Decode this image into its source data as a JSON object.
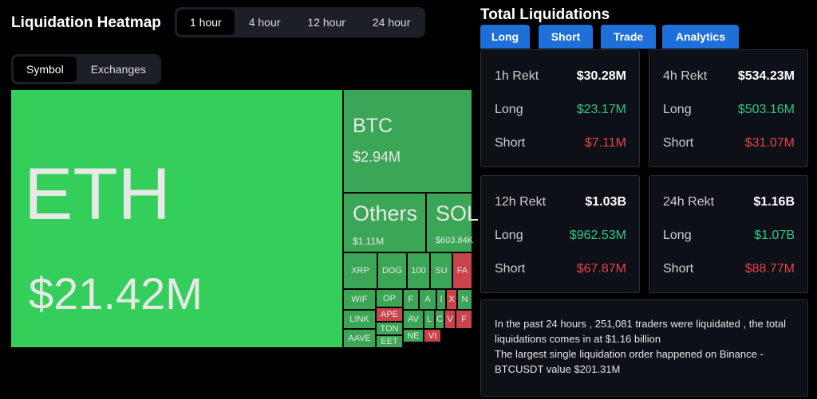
{
  "heatmap": {
    "title": "Liquidation Heatmap",
    "time_tabs": [
      "1 hour",
      "4 hour",
      "12 hour",
      "24 hour"
    ],
    "active_time_tab": 0,
    "view_tabs": [
      "Symbol",
      "Exchanges"
    ],
    "active_view_tab": 0,
    "tiles": [
      {
        "label": "ETH",
        "value": "$21.42M",
        "color": "#33cf5a"
      },
      {
        "label": "BTC",
        "value": "$2.94M",
        "color": "#3ba655"
      },
      {
        "label": "Others",
        "value": "$1.11M",
        "color": "#3ba655"
      },
      {
        "label": "SOL",
        "value": "$603.84K",
        "color": "#3ba655"
      },
      {
        "label": "XRP",
        "color": "#3ba655"
      },
      {
        "label": "DOG",
        "color": "#3ba655"
      },
      {
        "label": "100",
        "color": "#3ba655"
      },
      {
        "label": "SU",
        "color": "#3ba655"
      },
      {
        "label": "FA",
        "color": "#c9434b"
      },
      {
        "label": "WIF",
        "color": "#3ba655"
      },
      {
        "label": "LINK",
        "color": "#3ba655"
      },
      {
        "label": "AAVE",
        "color": "#3ba655"
      },
      {
        "label": "OP",
        "color": "#3ba655"
      },
      {
        "label": "APE",
        "color": "#c9434b"
      },
      {
        "label": "TON",
        "color": "#3ba655"
      },
      {
        "label": "EET",
        "color": "#3ba655"
      },
      {
        "label": "F",
        "color": "#3ba655"
      },
      {
        "label": "AV",
        "color": "#3ba655"
      },
      {
        "label": "NE",
        "color": "#3ba655"
      },
      {
        "label": "A",
        "color": "#3ba655"
      },
      {
        "label": "I",
        "color": "#3ba655"
      },
      {
        "label": "X",
        "color": "#c9434b"
      },
      {
        "label": "N",
        "color": "#3ba655"
      },
      {
        "label": "L",
        "color": "#3ba655"
      },
      {
        "label": "C",
        "color": "#3ba655"
      },
      {
        "label": "V",
        "color": "#c9434b"
      },
      {
        "label": "F",
        "color": "#c9434b"
      },
      {
        "label": "VI",
        "color": "#c9434b"
      }
    ]
  },
  "totals": {
    "title": "Total Liquidations",
    "tabs": [
      "Long",
      "Short",
      "Trade",
      "Analytics"
    ],
    "cards": [
      {
        "period": "1h Rekt",
        "total": "$30.28M",
        "long_label": "Long",
        "long": "$23.17M",
        "short_label": "Short",
        "short": "$7.11M"
      },
      {
        "period": "4h Rekt",
        "total": "$534.23M",
        "long_label": "Long",
        "long": "$503.16M",
        "short_label": "Short",
        "short": "$31.07M"
      },
      {
        "period": "12h Rekt",
        "total": "$1.03B",
        "long_label": "Long",
        "long": "$962.53M",
        "short_label": "Short",
        "short": "$67.87M"
      },
      {
        "period": "24h Rekt",
        "total": "$1.16B",
        "long_label": "Long",
        "long": "$1.07B",
        "short_label": "Short",
        "short": "$88.77M"
      }
    ],
    "info": [
      "In the past 24 hours , 251,081 traders were liquidated , the total liquidations comes in at $1.16 billion",
      "The largest single liquidation order happened on Binance - BTCUSDT value $201.31M"
    ]
  }
}
